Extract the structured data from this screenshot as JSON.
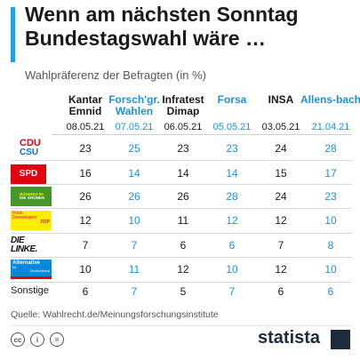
{
  "title": "Wenn am nächsten Sonntag Bundestagswahl wäre …",
  "subtitle": "Wahlpräferenz der Befragten (in %)",
  "source": "Quelle: Wahlrecht.de/Meinungsforschungsinstitute",
  "brand": "statista",
  "license_icons": [
    "cc-icon",
    "person-icon",
    "equals-icon"
  ],
  "colors": {
    "accent": "#1ea1e6",
    "highlight_column_text": "#1e90d8",
    "brand": "#1e2b3c"
  },
  "columns": [
    {
      "name": "Kantar Emnid",
      "date": "08.05.21"
    },
    {
      "name": "Forsch'gr. Wahlen",
      "date": "07.05.21"
    },
    {
      "name": "Infratest Dimap",
      "date": "06.05.21"
    },
    {
      "name": "Forsa",
      "date": "05.05.21"
    },
    {
      "name": "INSA",
      "date": "03.05.21"
    },
    {
      "name": "Allens-bach",
      "date": "21.04.21"
    }
  ],
  "rows": [
    {
      "party": "CDU/CSU",
      "logo": "cdu-csu-logo",
      "logo_text": [
        "CDU",
        "CSU"
      ],
      "values": [
        23,
        25,
        23,
        23,
        24,
        28
      ]
    },
    {
      "party": "SPD",
      "logo": "spd-logo",
      "logo_text": [
        "SPD"
      ],
      "values": [
        16,
        14,
        14,
        14,
        15,
        17
      ]
    },
    {
      "party": "Bündnis 90/Die Grünen",
      "logo": "gruene-logo",
      "logo_text": [
        "BÜNDNIS 90",
        "DIE GRÜNEN"
      ],
      "values": [
        26,
        26,
        26,
        28,
        24,
        23
      ]
    },
    {
      "party": "FDP",
      "logo": "fdp-logo",
      "logo_text": [
        "Freie",
        "Demokraten",
        "FDP"
      ],
      "values": [
        12,
        10,
        11,
        12,
        12,
        10
      ]
    },
    {
      "party": "Die Linke",
      "logo": "linke-logo",
      "logo_text": [
        "DIE LINKE."
      ],
      "values": [
        7,
        7,
        6,
        6,
        7,
        8
      ]
    },
    {
      "party": "AfD",
      "logo": "afd-logo",
      "logo_text": [
        "Alternative",
        "für",
        "Deutschland"
      ],
      "values": [
        10,
        11,
        12,
        10,
        12,
        10
      ]
    },
    {
      "party": "Sonstige",
      "label": "Sonstige",
      "values": [
        6,
        7,
        5,
        7,
        6,
        6
      ]
    }
  ],
  "chart_data": {
    "type": "table",
    "title": "Wenn am nächsten Sonntag Bundestagswahl wäre …",
    "subtitle": "Wahlpräferenz der Befragten (in %)",
    "columns": [
      "Kantar Emnid",
      "Forsch'gr. Wahlen",
      "Infratest Dimap",
      "Forsa",
      "INSA",
      "Allens-bach"
    ],
    "dates": [
      "08.05.21",
      "07.05.21",
      "06.05.21",
      "05.05.21",
      "03.05.21",
      "21.04.21"
    ],
    "categories": [
      "CDU/CSU",
      "SPD",
      "Bündnis 90/Die Grünen",
      "FDP",
      "Die Linke",
      "AfD",
      "Sonstige"
    ],
    "series": [
      {
        "name": "Kantar Emnid",
        "values": [
          23,
          16,
          26,
          12,
          7,
          10,
          6
        ]
      },
      {
        "name": "Forsch'gr. Wahlen",
        "values": [
          25,
          14,
          26,
          10,
          7,
          11,
          7
        ]
      },
      {
        "name": "Infratest Dimap",
        "values": [
          23,
          14,
          26,
          11,
          6,
          12,
          5
        ]
      },
      {
        "name": "Forsa",
        "values": [
          23,
          14,
          28,
          12,
          6,
          10,
          7
        ]
      },
      {
        "name": "INSA",
        "values": [
          24,
          15,
          24,
          12,
          7,
          12,
          6
        ]
      },
      {
        "name": "Allens-bach",
        "values": [
          28,
          17,
          23,
          10,
          8,
          10,
          6
        ]
      }
    ],
    "highlighted_columns": [
      "Forsch'gr. Wahlen",
      "Forsa",
      "Allens-bach"
    ]
  }
}
